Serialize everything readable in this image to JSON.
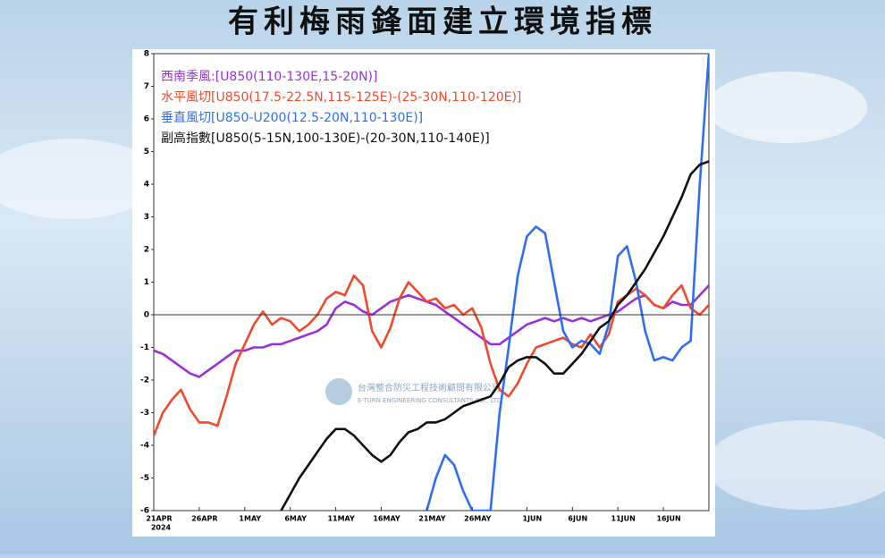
{
  "chart_data": {
    "type": "line",
    "title": "有利梅雨鋒面建立環境指標",
    "watermark": "台灣整合防災工程技術顧問有限公司",
    "watermark_en": "E-TURN ENGINEERING CONSULTANTS CO., LTD",
    "x_year_label": "2024",
    "categories": [
      "21APR",
      null,
      null,
      null,
      null,
      "26APR",
      null,
      null,
      null,
      null,
      "1MAY",
      null,
      null,
      null,
      null,
      "6MAY",
      null,
      null,
      null,
      null,
      "11MAY",
      null,
      null,
      null,
      null,
      "16MAY",
      null,
      null,
      null,
      null,
      "21MAY",
      null,
      null,
      null,
      null,
      "26MAY",
      null,
      null,
      null,
      null,
      null,
      "1JUN",
      null,
      null,
      null,
      null,
      "6JUN",
      null,
      null,
      null,
      null,
      "11JUN",
      null,
      null,
      null,
      null,
      "16JUN",
      null,
      null,
      null,
      null,
      null
    ],
    "ylim": [
      -6,
      8
    ],
    "yticks": [
      -6,
      -5,
      -4,
      -3,
      -2,
      -1,
      0,
      1,
      2,
      3,
      4,
      5,
      6,
      7,
      8
    ],
    "zero_line": true,
    "series": [
      {
        "name": "西南季風:[U850(110-130E,15-20N)]",
        "color": "#9b30d9",
        "values": [
          -1.1,
          -1.2,
          -1.4,
          -1.6,
          -1.8,
          -1.9,
          -1.7,
          -1.5,
          -1.3,
          -1.1,
          -1.1,
          -1.0,
          -1.0,
          -0.9,
          -0.9,
          -0.8,
          -0.7,
          -0.6,
          -0.5,
          -0.3,
          0.2,
          0.4,
          0.3,
          0.1,
          0.0,
          0.2,
          0.4,
          0.5,
          0.6,
          0.5,
          0.4,
          0.3,
          0.1,
          -0.1,
          -0.3,
          -0.5,
          -0.7,
          -0.9,
          -0.9,
          -0.7,
          -0.5,
          -0.3,
          -0.2,
          -0.1,
          -0.2,
          -0.1,
          -0.2,
          -0.1,
          -0.2,
          -0.1,
          0.0,
          0.1,
          0.3,
          0.5,
          0.6,
          0.3,
          0.2,
          0.4,
          0.3,
          0.3,
          0.6,
          0.9
        ]
      },
      {
        "name": "水平風切[U850(17.5-22.5N,115-125E)-(25-30N,110-120E)]",
        "color": "#f04a2c",
        "values": [
          -3.7,
          -3.0,
          -2.6,
          -2.3,
          -2.9,
          -3.3,
          -3.3,
          -3.4,
          -2.5,
          -1.5,
          -0.9,
          -0.3,
          0.1,
          -0.3,
          -0.1,
          -0.2,
          -0.5,
          -0.3,
          0.0,
          0.5,
          0.7,
          0.6,
          1.2,
          0.9,
          -0.5,
          -1.0,
          -0.4,
          0.5,
          1.0,
          0.7,
          0.4,
          0.5,
          0.2,
          0.3,
          0.0,
          0.2,
          -0.4,
          -1.5,
          -2.3,
          -2.5,
          -2.1,
          -1.5,
          -1.0,
          -0.9,
          -0.8,
          -0.7,
          -0.9,
          -1.0,
          -0.6,
          -1.0,
          -0.6,
          0.4,
          0.6,
          0.8,
          0.6,
          0.3,
          0.2,
          0.6,
          0.9,
          0.2,
          0.0,
          0.3
        ]
      },
      {
        "name": "垂直風切[U850-U200(12.5-20N,110-130E)]",
        "color": "#2f6ef0",
        "values": [
          null,
          null,
          null,
          null,
          null,
          null,
          null,
          null,
          null,
          null,
          null,
          null,
          null,
          null,
          null,
          null,
          null,
          null,
          null,
          null,
          null,
          null,
          null,
          null,
          null,
          null,
          null,
          null,
          null,
          null,
          -6.0,
          -5.0,
          -4.3,
          -4.6,
          -5.4,
          -6.0,
          -6.0,
          -6.0,
          -3.0,
          -1.0,
          1.2,
          2.4,
          2.7,
          2.5,
          1.0,
          -0.5,
          -1.0,
          -0.8,
          -0.9,
          -1.2,
          -0.3,
          1.8,
          2.1,
          1.0,
          -0.5,
          -1.4,
          -1.3,
          -1.4,
          -1.0,
          -0.8,
          4.0,
          8.0
        ]
      },
      {
        "name": "副高指數[U850(5-15N,100-130E)-(20-30N,110-140E)]",
        "color": "#111111",
        "values": [
          null,
          null,
          null,
          null,
          null,
          null,
          null,
          null,
          null,
          null,
          null,
          null,
          null,
          null,
          -6.0,
          -5.5,
          -5.0,
          -4.6,
          -4.2,
          -3.8,
          -3.5,
          -3.5,
          -3.7,
          -4.0,
          -4.3,
          -4.5,
          -4.3,
          -3.9,
          -3.6,
          -3.5,
          -3.3,
          -3.3,
          -3.2,
          -3.0,
          -2.8,
          -2.7,
          -2.6,
          -2.5,
          -2.1,
          -1.6,
          -1.4,
          -1.3,
          -1.3,
          -1.5,
          -1.8,
          -1.8,
          -1.5,
          -1.2,
          -0.8,
          -0.4,
          -0.2,
          0.3,
          0.6,
          1.0,
          1.4,
          1.9,
          2.4,
          3.0,
          3.6,
          4.3,
          4.6,
          4.7
        ]
      }
    ]
  }
}
